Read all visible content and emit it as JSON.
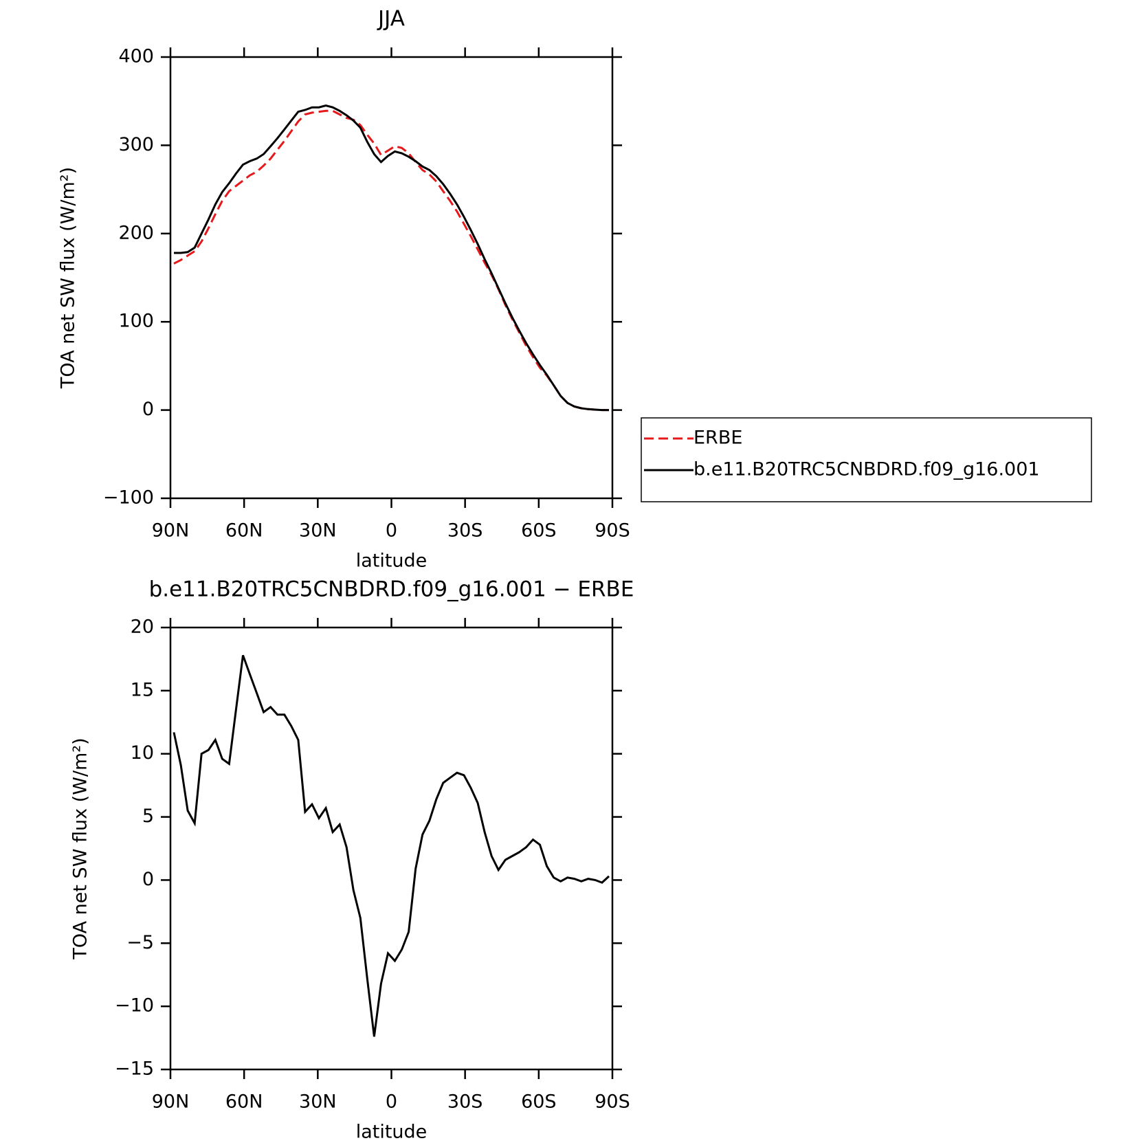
{
  "chart_data": [
    {
      "type": "line",
      "title": "JJA",
      "xlabel": "latitude",
      "ylabel": "TOA net SW flux (W/m²)",
      "x": [
        88.59,
        85.78,
        82.97,
        80.16,
        77.34,
        74.53,
        71.72,
        68.91,
        66.09,
        63.28,
        60.47,
        57.66,
        54.84,
        52.03,
        49.22,
        46.41,
        43.59,
        40.78,
        37.97,
        35.16,
        32.34,
        29.53,
        26.72,
        23.91,
        21.09,
        18.28,
        15.47,
        12.66,
        9.84,
        7.03,
        4.22,
        1.41,
        -1.41,
        -4.22,
        -7.03,
        -9.84,
        -12.66,
        -15.47,
        -18.28,
        -21.09,
        -23.91,
        -26.72,
        -29.53,
        -32.34,
        -35.16,
        -37.97,
        -40.78,
        -43.59,
        -46.41,
        -49.22,
        -52.03,
        -54.84,
        -57.66,
        -60.47,
        -63.28,
        -66.09,
        -68.91,
        -71.72,
        -74.53,
        -77.34,
        -80.16,
        -82.97,
        -85.78,
        -88.59
      ],
      "series": [
        {
          "name": "ERBE",
          "color": "#e41a1c",
          "dash": true,
          "values": [
            166,
            170,
            175,
            180,
            191,
            206,
            222,
            237,
            248,
            254,
            260,
            266,
            270,
            277,
            285,
            295,
            305,
            316,
            327,
            335,
            337,
            338,
            339,
            339,
            335,
            331,
            329,
            323,
            312,
            302,
            289,
            294,
            299,
            297,
            291,
            281,
            272,
            267,
            259,
            248,
            237,
            225,
            211,
            197,
            182,
            167,
            153,
            137,
            119,
            103,
            88,
            73,
            60,
            48,
            39,
            28,
            16,
            8,
            4,
            2,
            1,
            0.5,
            0,
            0
          ]
        },
        {
          "name": "b.e11.B20TRC5CNBDRD.f09_g16.001",
          "color": "#000000",
          "dash": false,
          "values": [
            178,
            178,
            179,
            184,
            200,
            216,
            233,
            247,
            257,
            268,
            278,
            282,
            285,
            290,
            299,
            308,
            318,
            328,
            338,
            340,
            343,
            343,
            345,
            343,
            339,
            334,
            328,
            320,
            304,
            290,
            281,
            288,
            293,
            291,
            287,
            282,
            276,
            272,
            265,
            256,
            245,
            233,
            219,
            204,
            188,
            171,
            155,
            138,
            121,
            105,
            90,
            76,
            63,
            51,
            40,
            28,
            16,
            8,
            4,
            2,
            1,
            0.5,
            0,
            0
          ]
        }
      ],
      "xlim": [
        90,
        -90
      ],
      "xticks": [
        {
          "value": 90,
          "label": "90N"
        },
        {
          "value": 60,
          "label": "60N"
        },
        {
          "value": 30,
          "label": "30N"
        },
        0,
        {
          "value": -30,
          "label": "30S"
        },
        {
          "value": -60,
          "label": "60S"
        },
        {
          "value": -90,
          "label": "90S"
        }
      ],
      "ylim": [
        -100,
        400
      ],
      "yticks": [
        {
          "value": -100,
          "label": "−100"
        },
        0,
        100,
        200,
        300,
        400
      ],
      "legend": "right"
    },
    {
      "type": "line",
      "title": "b.e11.B20TRC5CNBDRD.f09_g16.001 − ERBE",
      "xlabel": "latitude",
      "ylabel": "TOA net SW flux (W/m²)",
      "x": [
        88.59,
        85.78,
        82.97,
        80.16,
        77.34,
        74.53,
        71.72,
        68.91,
        66.09,
        63.28,
        60.47,
        57.66,
        54.84,
        52.03,
        49.22,
        46.41,
        43.59,
        40.78,
        37.97,
        35.16,
        32.34,
        29.53,
        26.72,
        23.91,
        21.09,
        18.28,
        15.47,
        12.66,
        9.84,
        7.03,
        4.22,
        1.41,
        -1.41,
        -4.22,
        -7.03,
        -9.84,
        -12.66,
        -15.47,
        -18.28,
        -21.09,
        -23.91,
        -26.72,
        -29.53,
        -32.34,
        -35.16,
        -37.97,
        -40.78,
        -43.59,
        -46.41,
        -49.22,
        -52.03,
        -54.84,
        -57.66,
        -60.47,
        -63.28,
        -66.09,
        -68.91,
        -71.72,
        -74.53,
        -77.34,
        -80.16,
        -82.97,
        -85.78,
        -88.59
      ],
      "values": [
        11.7,
        9.1,
        5.5,
        4.5,
        10.0,
        10.3,
        11.1,
        9.6,
        9.2,
        13.5,
        17.8,
        16.3,
        14.8,
        13.3,
        13.7,
        13.1,
        13.1,
        12.2,
        11.1,
        5.4,
        6.0,
        4.9,
        5.7,
        3.8,
        4.4,
        2.6,
        -0.8,
        -3.0,
        -7.8,
        -12.4,
        -8.2,
        -5.8,
        -6.4,
        -5.5,
        -4.1,
        0.9,
        3.6,
        4.7,
        6.4,
        7.7,
        8.1,
        8.5,
        8.3,
        7.3,
        6.1,
        3.8,
        1.9,
        0.8,
        1.6,
        1.9,
        2.2,
        2.6,
        3.2,
        2.8,
        1.1,
        0.2,
        -0.1,
        0.2,
        0.1,
        -0.1,
        0.1,
        0.0,
        -0.2,
        0.3
      ],
      "color": "#000000",
      "xlim": [
        90,
        -90
      ],
      "xticks": [
        {
          "value": 90,
          "label": "90N"
        },
        {
          "value": 60,
          "label": "60N"
        },
        {
          "value": 30,
          "label": "30N"
        },
        0,
        {
          "value": -30,
          "label": "30S"
        },
        {
          "value": -60,
          "label": "60S"
        },
        {
          "value": -90,
          "label": "90S"
        }
      ],
      "ylim": [
        -15,
        20
      ],
      "yticks": [
        {
          "value": -15,
          "label": "−15"
        },
        {
          "value": -10,
          "label": "−10"
        },
        {
          "value": -5,
          "label": "−5"
        },
        0,
        5,
        10,
        15,
        20
      ]
    }
  ]
}
